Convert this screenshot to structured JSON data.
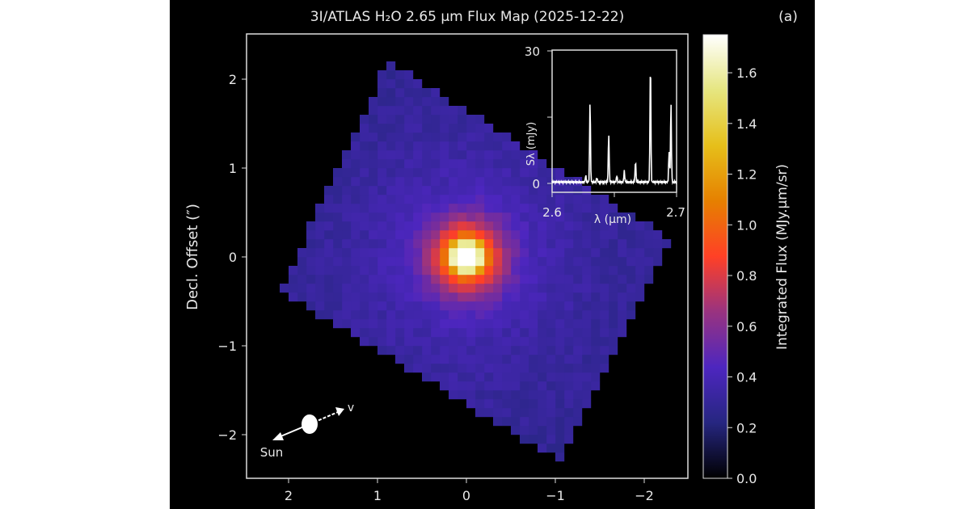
{
  "chart_data": [
    {
      "type": "heatmap",
      "title": "3I/ATLAS H₂O 2.65 μm Flux Map (2025-12-22)",
      "panel_label": "(a)",
      "ylabel": "Decl. Offset (″)",
      "xlabel": "",
      "xlim": [
        2.47,
        -2.49
      ],
      "ylim": [
        -2.49,
        2.51
      ],
      "xticks": [
        2,
        1,
        0,
        -1,
        -2
      ],
      "xtick_labels": [
        "2",
        "1",
        "0",
        "−1",
        "−2"
      ],
      "yticks": [
        2,
        1,
        0,
        -1,
        -2
      ],
      "ytick_labels": [
        "2",
        "1",
        "0",
        "−1",
        "−2"
      ],
      "peak": {
        "x": 0,
        "y": 0,
        "value": 1.72
      },
      "extended_coma_level": 0.3,
      "colormap": "CMRmap",
      "colorbar": {
        "label": "Integrated Flux (MJy.μm/sr)",
        "range": [
          0,
          1.75
        ],
        "ticks": [
          0.0,
          0.2,
          0.4,
          0.6,
          0.8,
          1.0,
          1.2,
          1.4,
          1.6
        ],
        "tick_labels": [
          "0.0",
          "0.2",
          "0.4",
          "0.6",
          "0.8",
          "1.0",
          "1.2",
          "1.4",
          "1.6"
        ]
      },
      "annotations": {
        "sun_label": "Sun",
        "velocity_label": "v"
      },
      "grid": false
    },
    {
      "type": "line",
      "xlabel": "λ (μm)",
      "ylabel": "Sλ (mJy)",
      "xlim": [
        2.6,
        2.7
      ],
      "ylim": [
        0,
        30
      ],
      "xtick_labels": [
        "2.6",
        "2.7"
      ],
      "ytick_labels": [
        "0",
        "30"
      ],
      "lines": [
        {
          "x": 2.627,
          "y": 1.5
        },
        {
          "x": 2.6305,
          "y": 18.5
        },
        {
          "x": 2.636,
          "y": 1.0
        },
        {
          "x": 2.6455,
          "y": 11
        },
        {
          "x": 2.652,
          "y": 1.5
        },
        {
          "x": 2.658,
          "y": 2.5
        },
        {
          "x": 2.667,
          "y": 4.8
        },
        {
          "x": 2.679,
          "y": 27.8
        },
        {
          "x": 2.694,
          "y": 7
        },
        {
          "x": 2.6955,
          "y": 18
        }
      ],
      "continuum": 0.3
    }
  ]
}
